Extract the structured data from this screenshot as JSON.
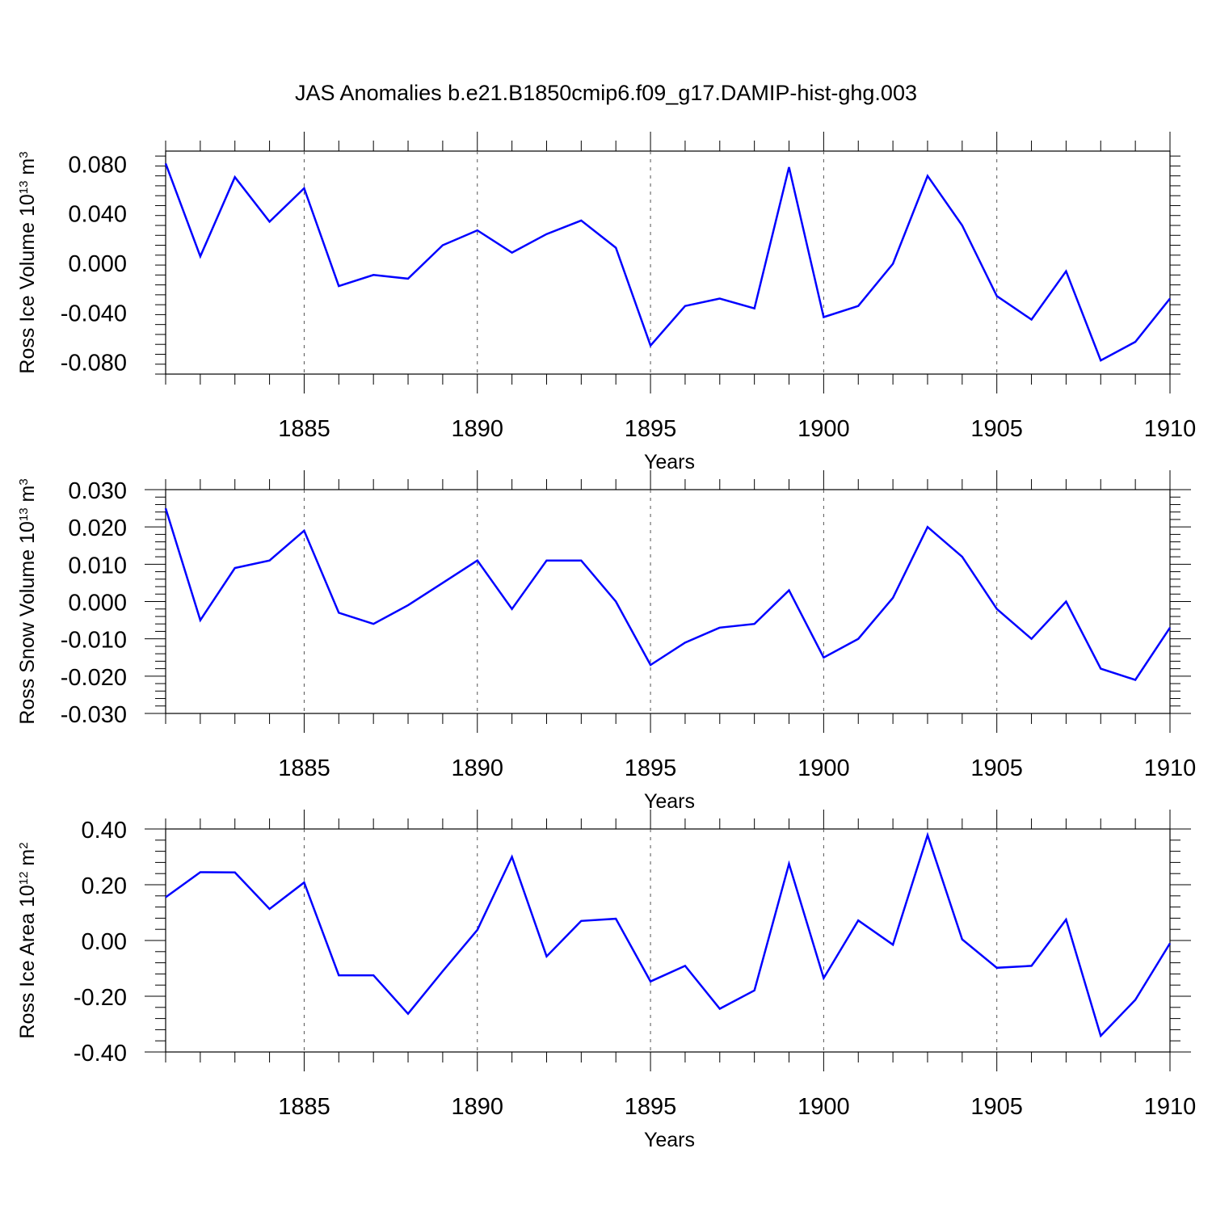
{
  "title": "JAS Anomalies b.e21.B1850cmip6.f09_g17.DAMIP-hist-ghg.003",
  "colors": {
    "series": "#0000ff",
    "axes": "#000000",
    "gridline": "#555555"
  },
  "chart_data": [
    {
      "type": "line",
      "ylabel_text": "Ross Ice Volume 10",
      "ylabel_exp": "13",
      "ylabel_unit": " m",
      "ylabel_unit_exp": "3",
      "xlabel": "Years",
      "xlim": [
        1881,
        1910
      ],
      "ylim": [
        -0.09,
        0.09
      ],
      "yticks": [
        -0.08,
        -0.04,
        0.0,
        0.04,
        0.08
      ],
      "ytick_labels": [
        "-0.080",
        "-0.040",
        "0.000",
        "0.040",
        "0.080"
      ],
      "xticks": [
        1885,
        1890,
        1895,
        1900,
        1905,
        1910
      ],
      "xtick_labels": [
        "1885",
        "1890",
        "1895",
        "1900",
        "1905",
        "1910"
      ],
      "grid": "dashed vertical at major x ticks",
      "x": [
        1881,
        1882,
        1883,
        1884,
        1885,
        1886,
        1887,
        1888,
        1889,
        1890,
        1891,
        1892,
        1893,
        1894,
        1895,
        1896,
        1897,
        1898,
        1899,
        1900,
        1901,
        1902,
        1903,
        1904,
        1905,
        1906,
        1907,
        1908,
        1909,
        1910
      ],
      "values": [
        0.08,
        0.005,
        0.069,
        0.033,
        0.06,
        -0.019,
        -0.01,
        -0.013,
        0.014,
        0.026,
        0.008,
        0.023,
        0.034,
        0.012,
        -0.067,
        -0.035,
        -0.029,
        -0.037,
        0.077,
        -0.044,
        -0.035,
        -0.001,
        0.07,
        0.03,
        -0.027,
        -0.046,
        -0.007,
        -0.079,
        -0.064,
        -0.029
      ]
    },
    {
      "type": "line",
      "ylabel_text": "Ross Snow Volume 10",
      "ylabel_exp": "13",
      "ylabel_unit": " m",
      "ylabel_unit_exp": "3",
      "xlabel": "Years",
      "xlim": [
        1881,
        1910
      ],
      "ylim": [
        -0.03,
        0.03
      ],
      "yticks": [
        -0.03,
        -0.02,
        -0.01,
        0.0,
        0.01,
        0.02,
        0.03
      ],
      "ytick_labels": [
        "-0.030",
        "-0.020",
        "-0.010",
        "0.000",
        "0.010",
        "0.020",
        "0.030"
      ],
      "xticks": [
        1885,
        1890,
        1895,
        1900,
        1905,
        1910
      ],
      "xtick_labels": [
        "1885",
        "1890",
        "1895",
        "1900",
        "1905",
        "1910"
      ],
      "grid": "dashed vertical at major x ticks",
      "x": [
        1881,
        1882,
        1883,
        1884,
        1885,
        1886,
        1887,
        1888,
        1889,
        1890,
        1891,
        1892,
        1893,
        1894,
        1895,
        1896,
        1897,
        1898,
        1899,
        1900,
        1901,
        1902,
        1903,
        1904,
        1905,
        1906,
        1907,
        1908,
        1909,
        1910
      ],
      "values": [
        0.025,
        -0.005,
        0.009,
        0.011,
        0.019,
        -0.003,
        -0.006,
        -0.001,
        0.005,
        0.011,
        -0.002,
        0.011,
        0.011,
        0.0,
        -0.017,
        -0.011,
        -0.007,
        -0.006,
        0.003,
        -0.015,
        -0.01,
        0.001,
        0.02,
        0.012,
        -0.002,
        -0.01,
        0.0,
        -0.018,
        -0.021,
        -0.007
      ]
    },
    {
      "type": "line",
      "ylabel_text": "Ross Ice Area 10",
      "ylabel_exp": "12",
      "ylabel_unit": " m",
      "ylabel_unit_exp": "2",
      "xlabel": "Years",
      "xlim": [
        1881,
        1910
      ],
      "ylim": [
        -0.4,
        0.4
      ],
      "yticks": [
        -0.4,
        -0.2,
        0.0,
        0.2,
        0.4
      ],
      "ytick_labels": [
        "-0.40",
        "-0.20",
        "0.00",
        "0.20",
        "0.40"
      ],
      "xticks": [
        1885,
        1890,
        1895,
        1900,
        1905,
        1910
      ],
      "xtick_labels": [
        "1885",
        "1890",
        "1895",
        "1900",
        "1905",
        "1910"
      ],
      "grid": "dashed vertical at major x ticks",
      "x": [
        1881,
        1882,
        1883,
        1884,
        1885,
        1886,
        1887,
        1888,
        1889,
        1890,
        1891,
        1892,
        1893,
        1894,
        1895,
        1896,
        1897,
        1898,
        1899,
        1900,
        1901,
        1902,
        1903,
        1904,
        1905,
        1906,
        1907,
        1908,
        1909,
        1910
      ],
      "values": [
        0.155,
        0.245,
        0.244,
        0.113,
        0.208,
        -0.125,
        -0.125,
        -0.263,
        -0.11,
        0.038,
        0.3,
        -0.057,
        0.07,
        0.078,
        -0.147,
        -0.091,
        -0.245,
        -0.179,
        0.275,
        -0.135,
        0.072,
        -0.015,
        0.378,
        0.004,
        -0.098,
        -0.091,
        0.075,
        -0.342,
        -0.213,
        -0.01
      ]
    }
  ]
}
